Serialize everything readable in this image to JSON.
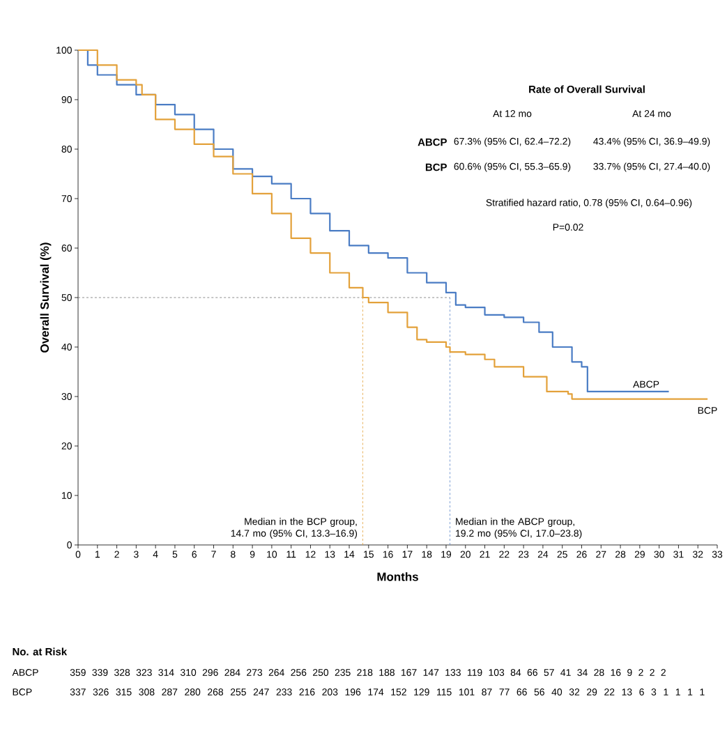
{
  "chart_data": {
    "type": "step",
    "ylabel": "Overall Survival (%)",
    "xlabel": "Months",
    "xlim": [
      0,
      33
    ],
    "xticks": [
      0,
      1,
      2,
      3,
      4,
      5,
      6,
      7,
      8,
      9,
      10,
      11,
      12,
      13,
      14,
      15,
      16,
      17,
      18,
      19,
      20,
      21,
      22,
      23,
      24,
      25,
      26,
      27,
      28,
      29,
      30,
      31,
      32,
      33
    ],
    "ylim": [
      0,
      100
    ],
    "yticks": [
      0,
      10,
      20,
      30,
      40,
      50,
      60,
      70,
      80,
      90,
      100
    ],
    "grid": false,
    "series": [
      {
        "name": "ABCP",
        "color": "#4a7cc4",
        "x": [
          0,
          0.5,
          1,
          2,
          3,
          4,
          5,
          6,
          7,
          8,
          9,
          10,
          11,
          12,
          13,
          14,
          15,
          16,
          17,
          18,
          19,
          19.5,
          20,
          21,
          22,
          23,
          23.8,
          24.5,
          25.5,
          26,
          26.3,
          30.5
        ],
        "values": [
          100,
          97,
          95,
          93,
          91,
          89,
          87,
          84,
          80,
          76,
          74.5,
          73,
          70,
          67,
          63.5,
          60.5,
          59,
          58,
          55,
          53,
          51,
          48.5,
          48,
          46.5,
          46,
          45,
          43,
          40,
          37,
          36,
          31,
          31
        ]
      },
      {
        "name": "BCP",
        "color": "#e3a13a",
        "x": [
          0,
          1,
          2,
          3,
          3.3,
          4,
          5,
          6,
          7,
          8,
          9,
          10,
          11,
          12,
          13,
          14,
          14.7,
          15,
          16,
          17,
          17.5,
          18,
          19,
          19.2,
          20,
          21,
          21.5,
          22.5,
          23,
          24.2,
          25.3,
          25.5,
          32.5
        ],
        "values": [
          100,
          97,
          94,
          93,
          91,
          86,
          84,
          81,
          78.5,
          75,
          71,
          67,
          62,
          59,
          55,
          52,
          50,
          49,
          47,
          44,
          41.5,
          41,
          40,
          39,
          38.5,
          37.5,
          36,
          36,
          34,
          31,
          30.5,
          29.5,
          29.5
        ]
      }
    ],
    "ref_lines": [
      {
        "axis": "y",
        "value": 50,
        "color": "#707070",
        "line_style": "dashed"
      },
      {
        "axis": "x",
        "value": 14.7,
        "color": "#e3a13a",
        "line_style": "dashed"
      },
      {
        "axis": "x",
        "value": 19.2,
        "color": "#5b85c8",
        "line_style": "dashed"
      }
    ],
    "annotations": [
      "Rate of Overall Survival",
      "At 12 mo",
      "At 24 mo",
      "67.3% (95% CI, 62.4–72.2)",
      "43.4% (95% CI, 36.9–49.9)",
      "60.6% (95% CI, 55.3–65.9)",
      "33.7% (95% CI, 27.4–40.0)",
      "Stratified hazard ratio, 0.78 (95% CI, 0.64–0.96)",
      "P=0.02",
      "Median in the BCP group, 14.7 mo (95% CI, 13.3–16.9)",
      "Median in the ABCP group, 19.2 mo (95% CI, 17.0–23.8)",
      "No. at Risk",
      "359 339 328 323 314 310 296 284 273 264 256 250 235 218 188 167 147 133 119 103 84 66 57 41 34 28 16 9 2 2 2",
      "337 326 315 308 287 280 268 255 247 233 216 203 196 174 152 129 115 101 87 77 66 56 40 32 29 22 13 6 3 1 1 1 1"
    ]
  }
}
